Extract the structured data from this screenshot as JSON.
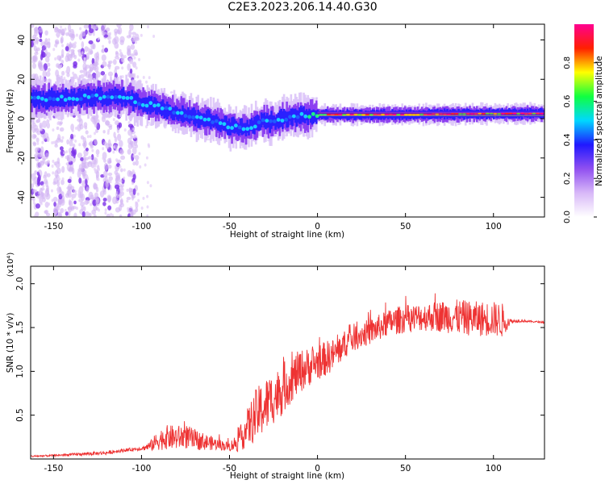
{
  "title": "C2E3.2023.206.14.40.G30",
  "colors": {
    "axis": "#000000",
    "snr_line": "#ee3333",
    "scatter_low": "#c8a0f0",
    "scatter_mid": "#6020e0",
    "trace_main": "#2030ff"
  },
  "chart_data": [
    {
      "type": "heatmap",
      "title": "",
      "xlabel": "Height of straight line (km)",
      "ylabel": "Frequency (Hz)",
      "xlim": [
        -163,
        129
      ],
      "ylim": [
        -50,
        48
      ],
      "x_ticks": [
        -150,
        -100,
        -50,
        0,
        50,
        100
      ],
      "y_ticks": [
        -40,
        -20,
        0,
        20,
        40
      ],
      "colorbar": {
        "label": "Normalized spectral amplitude",
        "range": [
          0,
          1
        ],
        "ticks": [
          "0.0",
          "0.2",
          "0.4",
          "0.6",
          "0.8"
        ],
        "tick_values": [
          0,
          0.2,
          0.4,
          0.6,
          0.8
        ],
        "colormap": [
          "#ffffff",
          "#d8b8f8",
          "#9050f0",
          "#2018ff",
          "#00d8ff",
          "#10ff40",
          "#ffff00",
          "#ff2000",
          "#ff0090"
        ]
      },
      "ridge": {
        "x": [
          -163,
          -150,
          -130,
          -110,
          -100,
          -90,
          -80,
          -70,
          -60,
          -50,
          -45,
          -40,
          -35,
          -30,
          -25,
          -20,
          -15,
          -10,
          -5,
          0,
          20,
          50,
          100,
          129
        ],
        "frequency": [
          10,
          10,
          11,
          11,
          8,
          6,
          3,
          1,
          -1,
          -4,
          -4.5,
          -5,
          -3,
          -1,
          -2,
          0,
          1,
          1.5,
          1.5,
          2,
          2,
          2,
          2.5,
          2.5
        ]
      }
    },
    {
      "type": "line",
      "title": "",
      "xlabel": "Height of straight line (km)",
      "ylabel": "SNR (10 * v/v)",
      "y_multiplier": "(x10⁴)",
      "xlim": [
        -163,
        129
      ],
      "ylim": [
        0,
        2.2
      ],
      "x_ticks": [
        -150,
        -100,
        -50,
        0,
        50,
        100
      ],
      "y_ticks": [
        "0.5",
        "1.0",
        "1.5",
        "2.0"
      ],
      "y_tick_values": [
        0.5,
        1.0,
        1.5,
        2.0
      ],
      "series": [
        {
          "x": [
            -163,
            -150,
            -130,
            -120,
            -110,
            -100,
            -95,
            -90,
            -85,
            -80,
            -75,
            -70,
            -65,
            -60,
            -55,
            -50,
            -45,
            -40,
            -35,
            -30,
            -25,
            -22,
            -20,
            -15,
            -10,
            -5,
            0,
            5,
            10,
            15,
            20,
            25,
            30,
            35,
            40,
            45,
            50,
            60,
            70,
            80,
            90,
            100,
            105,
            110,
            115,
            120,
            129
          ],
          "y": [
            0.03,
            0.04,
            0.06,
            0.07,
            0.1,
            0.12,
            0.15,
            0.22,
            0.25,
            0.24,
            0.26,
            0.22,
            0.2,
            0.18,
            0.16,
            0.14,
            0.2,
            0.35,
            0.5,
            0.6,
            0.7,
            0.75,
            0.8,
            0.9,
            1.0,
            1.05,
            1.1,
            1.15,
            1.2,
            1.3,
            1.38,
            1.42,
            1.45,
            1.5,
            1.55,
            1.58,
            1.6,
            1.62,
            1.63,
            1.62,
            1.6,
            1.6,
            1.58,
            1.57,
            1.58,
            1.57,
            1.56
          ],
          "noise": [
            0.01,
            0.01,
            0.02,
            0.02,
            0.02,
            0.02,
            0.06,
            0.12,
            0.14,
            0.14,
            0.14,
            0.12,
            0.1,
            0.08,
            0.06,
            0.05,
            0.12,
            0.22,
            0.3,
            0.32,
            0.3,
            0.3,
            0.3,
            0.26,
            0.25,
            0.22,
            0.2,
            0.2,
            0.18,
            0.16,
            0.16,
            0.15,
            0.15,
            0.15,
            0.15,
            0.16,
            0.16,
            0.16,
            0.18,
            0.2,
            0.2,
            0.2,
            0.2,
            0.02,
            0.02,
            0.01,
            0.01
          ]
        }
      ]
    }
  ]
}
